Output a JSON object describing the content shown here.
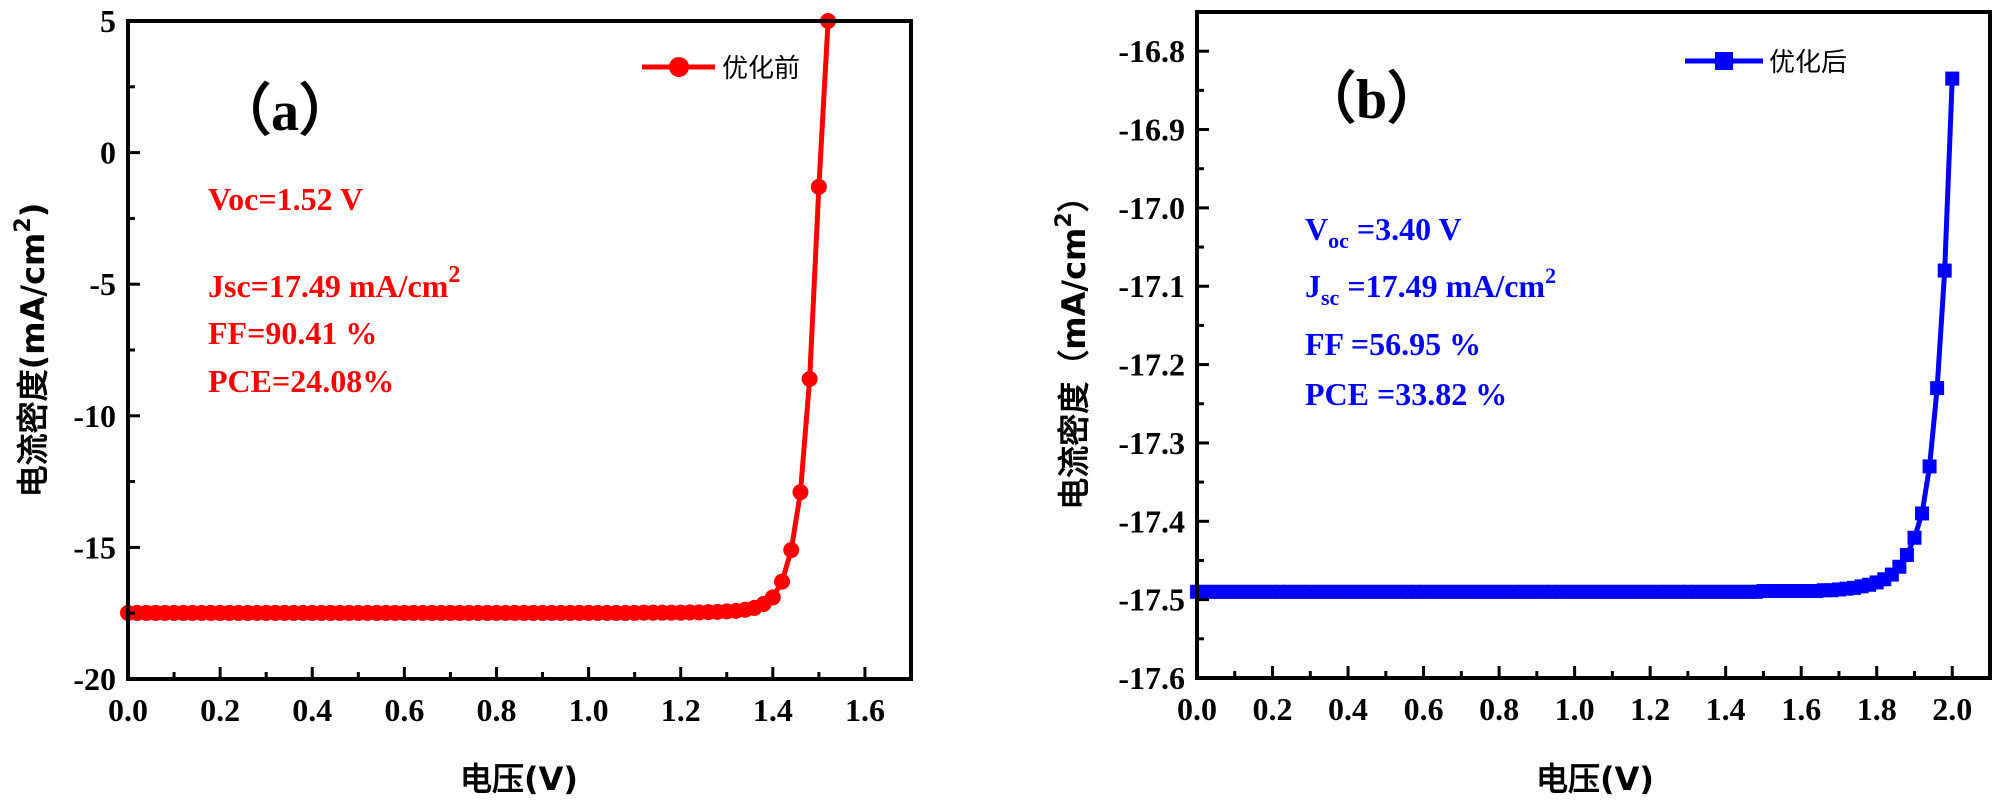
{
  "chart_data": [
    {
      "type": "line",
      "panel_label": "（a）",
      "title": "",
      "xlabel": "电压(V)",
      "ylabel": "电流密度(mA/cm2)",
      "ylabel_parts": {
        "main": "电流密度(mA/cm",
        "sup": "2",
        "end": ")"
      },
      "xlim": [
        0,
        1.7
      ],
      "ylim": [
        -20,
        5
      ],
      "xticks": [
        0.0,
        0.2,
        0.4,
        0.6,
        0.8,
        1.0,
        1.2,
        1.4,
        1.6
      ],
      "xtick_labels": [
        "0.0",
        "0.2",
        "0.4",
        "0.6",
        "0.8",
        "1.0",
        "1.2",
        "1.4",
        "1.6"
      ],
      "yticks": [
        5,
        0,
        -5,
        -10,
        -15,
        -20
      ],
      "ytick_labels": [
        "5",
        "0",
        "-5",
        "-10",
        "-15",
        "-20"
      ],
      "legend": "优化前",
      "legend_position": "top-right",
      "color": "#ff0000",
      "marker": "circle",
      "series": [
        {
          "name": "优化前",
          "x": [
            0.0,
            0.02,
            0.04,
            0.06,
            0.08,
            0.1,
            0.12,
            0.14,
            0.16,
            0.18,
            0.2,
            0.22,
            0.24,
            0.26,
            0.28,
            0.3,
            0.32,
            0.34,
            0.36,
            0.38,
            0.4,
            0.42,
            0.44,
            0.46,
            0.48,
            0.5,
            0.52,
            0.54,
            0.56,
            0.58,
            0.6,
            0.62,
            0.64,
            0.66,
            0.68,
            0.7,
            0.72,
            0.74,
            0.76,
            0.78,
            0.8,
            0.82,
            0.84,
            0.86,
            0.88,
            0.9,
            0.92,
            0.94,
            0.96,
            0.98,
            1.0,
            1.02,
            1.04,
            1.06,
            1.08,
            1.1,
            1.12,
            1.14,
            1.16,
            1.18,
            1.2,
            1.22,
            1.24,
            1.26,
            1.28,
            1.3,
            1.32,
            1.34,
            1.36,
            1.38,
            1.4,
            1.42,
            1.44,
            1.46,
            1.48,
            1.5,
            1.52
          ],
          "y": [
            -17.49,
            -17.49,
            -17.49,
            -17.49,
            -17.49,
            -17.49,
            -17.49,
            -17.49,
            -17.49,
            -17.49,
            -17.49,
            -17.49,
            -17.49,
            -17.49,
            -17.49,
            -17.49,
            -17.49,
            -17.49,
            -17.49,
            -17.49,
            -17.49,
            -17.49,
            -17.49,
            -17.49,
            -17.49,
            -17.49,
            -17.49,
            -17.49,
            -17.49,
            -17.49,
            -17.49,
            -17.49,
            -17.49,
            -17.49,
            -17.49,
            -17.49,
            -17.49,
            -17.49,
            -17.49,
            -17.49,
            -17.49,
            -17.49,
            -17.49,
            -17.49,
            -17.49,
            -17.49,
            -17.49,
            -17.49,
            -17.49,
            -17.49,
            -17.49,
            -17.49,
            -17.49,
            -17.49,
            -17.49,
            -17.49,
            -17.48,
            -17.48,
            -17.48,
            -17.48,
            -17.48,
            -17.47,
            -17.47,
            -17.46,
            -17.45,
            -17.43,
            -17.41,
            -17.37,
            -17.3,
            -17.15,
            -16.9,
            -16.3,
            -15.1,
            -12.9,
            -8.6,
            -1.3,
            5.0
          ],
          "line_end": [
            1.525,
            5.0
          ]
        }
      ],
      "annotations": [
        {
          "text": "Voc=1.52 V"
        },
        {
          "text": "Jsc=17.49 mA/cm",
          "sup": "2"
        },
        {
          "text": "FF=90.41 %"
        },
        {
          "text": "PCE=24.08%"
        }
      ]
    },
    {
      "type": "line",
      "panel_label": "（b）",
      "title": "",
      "xlabel": "电压(V)",
      "ylabel": "电流密度（mA/cm2）",
      "ylabel_parts": {
        "main": "电流密度（mA/cm",
        "sup": "2",
        "end": "）"
      },
      "xlim": [
        0,
        2.1
      ],
      "ylim": [
        -17.6,
        -16.75
      ],
      "xticks": [
        0.0,
        0.2,
        0.4,
        0.6,
        0.8,
        1.0,
        1.2,
        1.4,
        1.6,
        1.8,
        2.0
      ],
      "xtick_labels": [
        "0.0",
        "0.2",
        "0.4",
        "0.6",
        "0.8",
        "1.0",
        "1.2",
        "1.4",
        "1.6",
        "1.8",
        "2.0"
      ],
      "yticks": [
        -16.8,
        -16.9,
        -17.0,
        -17.1,
        -17.2,
        -17.3,
        -17.4,
        -17.5,
        -17.6
      ],
      "ytick_labels": [
        "-16.8",
        "-16.9",
        "-17.0",
        "-17.1",
        "-17.2",
        "-17.3",
        "-17.4",
        "-17.5",
        "-17.6"
      ],
      "legend": "优化后",
      "legend_position": "top-right",
      "color": "#0000ff",
      "marker": "square",
      "series": [
        {
          "name": "优化后",
          "x": [
            0.0,
            0.02,
            0.04,
            0.06,
            0.08,
            0.1,
            0.12,
            0.14,
            0.16,
            0.18,
            0.2,
            0.22,
            0.24,
            0.26,
            0.28,
            0.3,
            0.32,
            0.34,
            0.36,
            0.38,
            0.4,
            0.42,
            0.44,
            0.46,
            0.48,
            0.5,
            0.52,
            0.54,
            0.56,
            0.58,
            0.6,
            0.62,
            0.64,
            0.66,
            0.68,
            0.7,
            0.72,
            0.74,
            0.76,
            0.78,
            0.8,
            0.82,
            0.84,
            0.86,
            0.88,
            0.9,
            0.92,
            0.94,
            0.96,
            0.98,
            1.0,
            1.02,
            1.04,
            1.06,
            1.08,
            1.1,
            1.12,
            1.14,
            1.16,
            1.18,
            1.2,
            1.22,
            1.24,
            1.26,
            1.28,
            1.3,
            1.32,
            1.34,
            1.36,
            1.38,
            1.4,
            1.42,
            1.44,
            1.46,
            1.48,
            1.5,
            1.52,
            1.54,
            1.56,
            1.58,
            1.6,
            1.62,
            1.64,
            1.66,
            1.68,
            1.7,
            1.72,
            1.74,
            1.76,
            1.78,
            1.8,
            1.82,
            1.84,
            1.86,
            1.88,
            1.9,
            1.92,
            1.94,
            1.96,
            1.98,
            2.0
          ],
          "y": [
            -17.49,
            -17.49,
            -17.49,
            -17.49,
            -17.49,
            -17.49,
            -17.49,
            -17.49,
            -17.49,
            -17.49,
            -17.49,
            -17.49,
            -17.49,
            -17.49,
            -17.49,
            -17.49,
            -17.49,
            -17.49,
            -17.49,
            -17.49,
            -17.49,
            -17.49,
            -17.49,
            -17.49,
            -17.49,
            -17.49,
            -17.49,
            -17.49,
            -17.49,
            -17.49,
            -17.49,
            -17.49,
            -17.49,
            -17.49,
            -17.49,
            -17.49,
            -17.49,
            -17.49,
            -17.49,
            -17.49,
            -17.49,
            -17.49,
            -17.49,
            -17.49,
            -17.49,
            -17.49,
            -17.49,
            -17.49,
            -17.49,
            -17.49,
            -17.49,
            -17.49,
            -17.49,
            -17.49,
            -17.49,
            -17.49,
            -17.49,
            -17.49,
            -17.49,
            -17.49,
            -17.49,
            -17.49,
            -17.49,
            -17.49,
            -17.49,
            -17.49,
            -17.49,
            -17.49,
            -17.49,
            -17.49,
            -17.49,
            -17.49,
            -17.49,
            -17.49,
            -17.49,
            -17.489,
            -17.489,
            -17.489,
            -17.489,
            -17.489,
            -17.489,
            -17.489,
            -17.489,
            -17.488,
            -17.488,
            -17.487,
            -17.486,
            -17.485,
            -17.483,
            -17.481,
            -17.478,
            -17.474,
            -17.468,
            -17.458,
            -17.443,
            -17.421,
            -17.39,
            -17.33,
            -17.23,
            -17.08,
            -16.835
          ]
        }
      ],
      "annotations": [
        {
          "main": "V",
          "sub": "oc",
          "rest": " =3.40 V"
        },
        {
          "main": "J",
          "sub": "sc",
          "rest": " =17.49 mA/cm",
          "sup": "2"
        },
        {
          "text": "FF =56.95 %"
        },
        {
          "text": "PCE =33.82 %"
        }
      ]
    }
  ]
}
